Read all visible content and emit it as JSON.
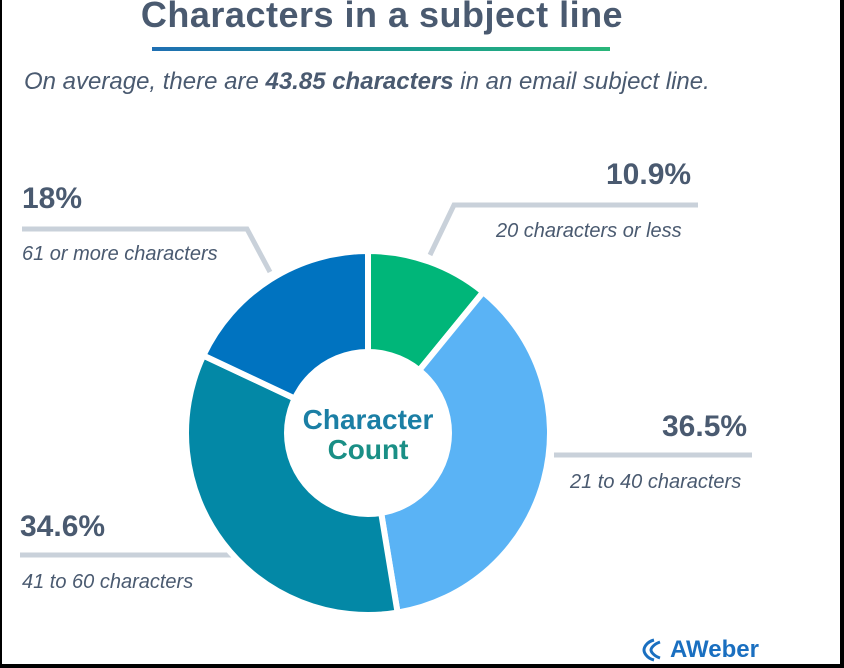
{
  "title": "Characters in a subject line",
  "subtitle": {
    "prefix": "On average, there are ",
    "highlight": "43.85 characters",
    "suffix": " in an email subject line."
  },
  "center": {
    "line1": "Character",
    "line2": "Count"
  },
  "brand": "AWeber",
  "colors": {
    "text": "#4a5a70",
    "leader": "#c9d1da"
  },
  "chart_data": {
    "type": "pie",
    "donut": true,
    "slices": [
      {
        "label": "20 characters or less",
        "value": 10.9,
        "value_label": "10.9%",
        "color": "#00b679"
      },
      {
        "label": "21 to 40 characters",
        "value": 36.5,
        "value_label": "36.5%",
        "color": "#5ab3f5"
      },
      {
        "label": "41 to 60 characters",
        "value": 34.6,
        "value_label": "34.6%",
        "color": "#0388a6"
      },
      {
        "label": "61 or more characters",
        "value": 18,
        "value_label": "18%",
        "color": "#0073c0"
      }
    ]
  }
}
